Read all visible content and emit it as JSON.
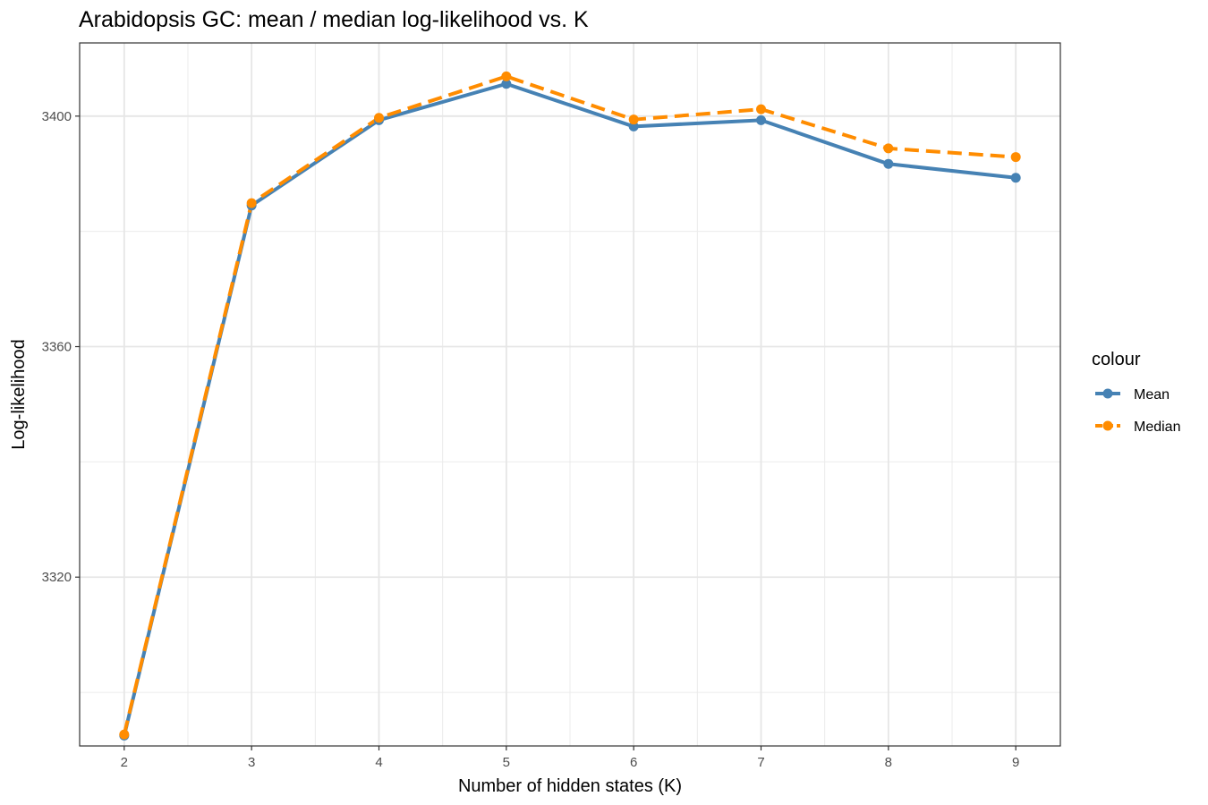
{
  "chart_data": {
    "type": "line",
    "title": "Arabidopsis GC: mean / median log-likelihood vs. K",
    "xlabel": "Number of hidden states (K)",
    "ylabel": "Log-likelihood",
    "x": [
      2,
      3,
      4,
      5,
      6,
      7,
      8,
      9
    ],
    "xlim": [
      1.65,
      9.35
    ],
    "ylim": [
      3290.7,
      3412.7
    ],
    "x_ticks": [
      2,
      3,
      4,
      5,
      6,
      7,
      8,
      9
    ],
    "y_ticks": [
      3320,
      3360,
      3400
    ],
    "grid": true,
    "legend_title": "colour",
    "legend_position": "right",
    "series": [
      {
        "name": "Mean",
        "color": "#4682B4",
        "dash": "solid",
        "values": [
          3292.5,
          3384.5,
          3399.3,
          3405.6,
          3398.2,
          3399.3,
          3391.7,
          3389.3
        ]
      },
      {
        "name": "Median",
        "color": "#FF8C00",
        "dash": "dashed",
        "values": [
          3292.7,
          3384.9,
          3399.7,
          3406.9,
          3399.4,
          3401.2,
          3394.4,
          3392.9
        ]
      }
    ]
  }
}
